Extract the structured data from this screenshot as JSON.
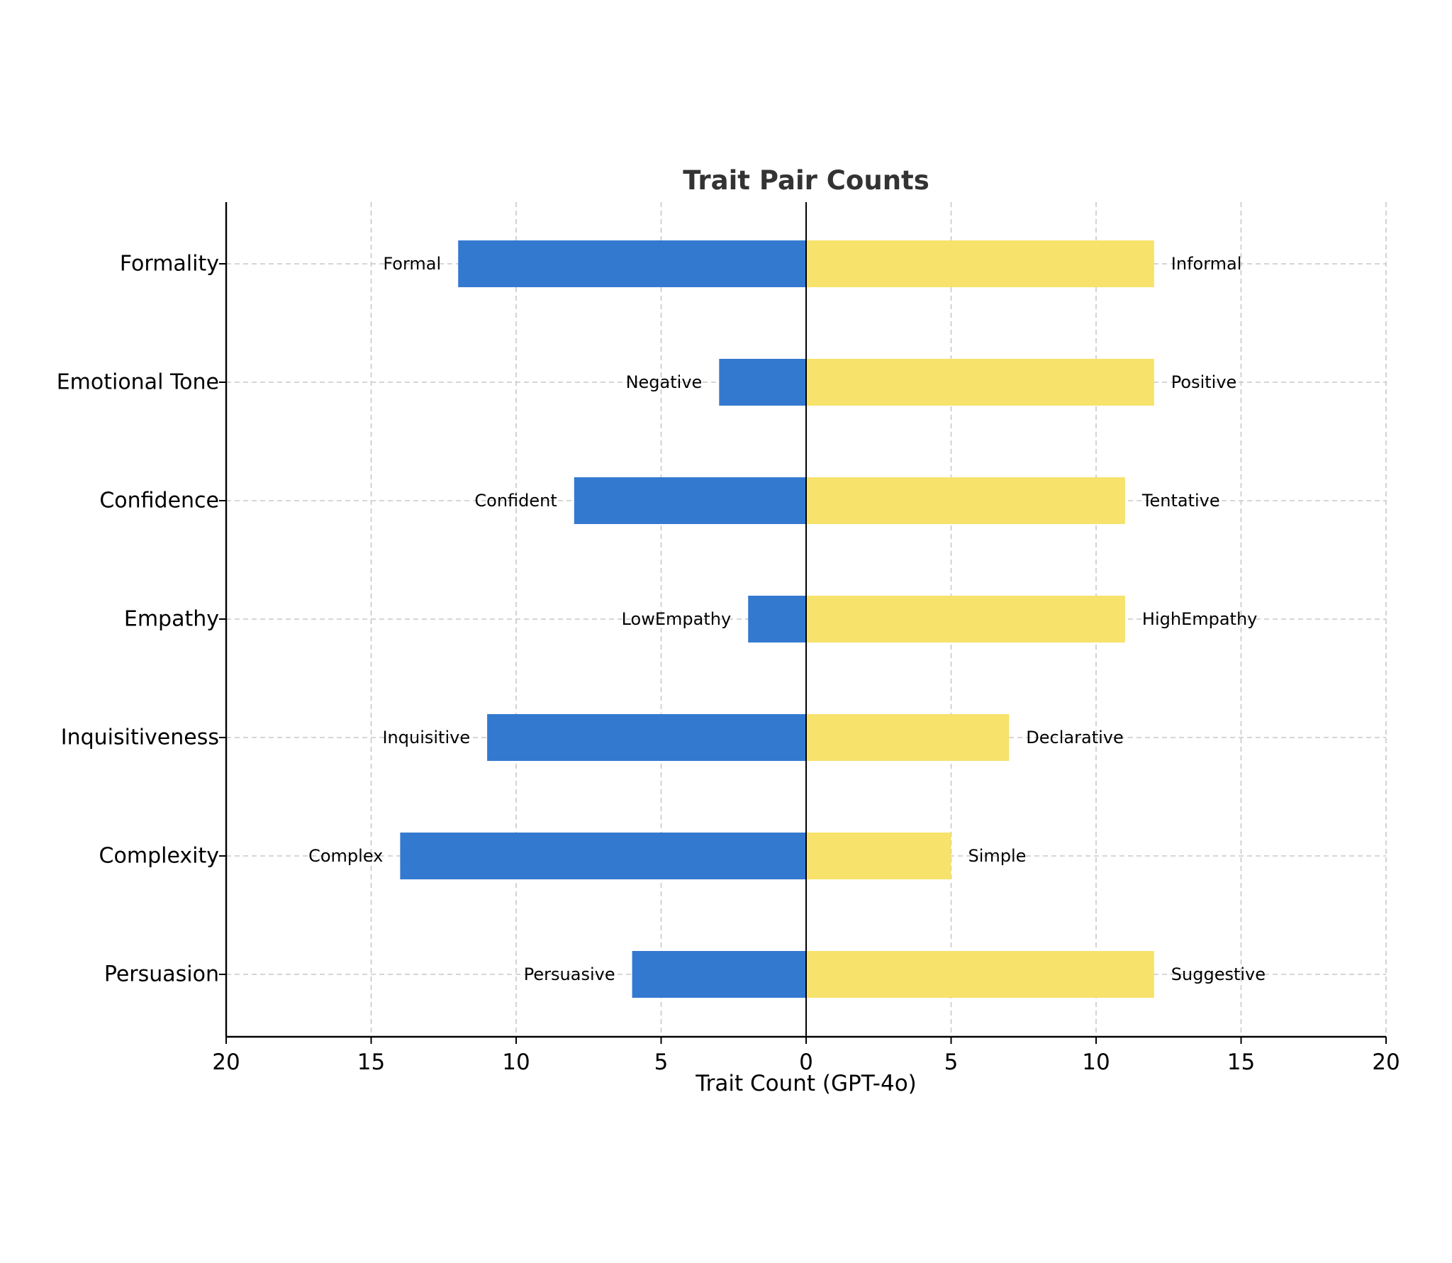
{
  "chart_data": {
    "type": "bar",
    "orientation": "horizontal-diverging",
    "title": "Trait Pair Counts",
    "xlabel": "Trait Count (GPT-4o)",
    "ylabel": "",
    "xlim": [
      -20,
      20
    ],
    "xticks": [
      -20,
      -15,
      -10,
      -5,
      0,
      5,
      10,
      15,
      20
    ],
    "xtick_labels": [
      "20",
      "15",
      "10",
      "5",
      "0",
      "5",
      "10",
      "15",
      "20"
    ],
    "grid": true,
    "categories": [
      "Formality",
      "Emotional Tone",
      "Confidence",
      "Empathy",
      "Inquisitiveness",
      "Complexity",
      "Persuasion"
    ],
    "series": [
      {
        "side": "left",
        "color": "#3479d0",
        "values": [
          12,
          3,
          8,
          2,
          11,
          14,
          6
        ],
        "labels": [
          "Formal",
          "Negative",
          "Confident",
          "LowEmpathy",
          "Inquisitive",
          "Complex",
          "Persuasive"
        ]
      },
      {
        "side": "right",
        "color": "#f7e26b",
        "values": [
          12,
          12,
          11,
          11,
          7,
          5,
          12
        ],
        "labels": [
          "Informal",
          "Positive",
          "Tentative",
          "HighEmpathy",
          "Declarative",
          "Simple",
          "Suggestive"
        ]
      }
    ]
  }
}
